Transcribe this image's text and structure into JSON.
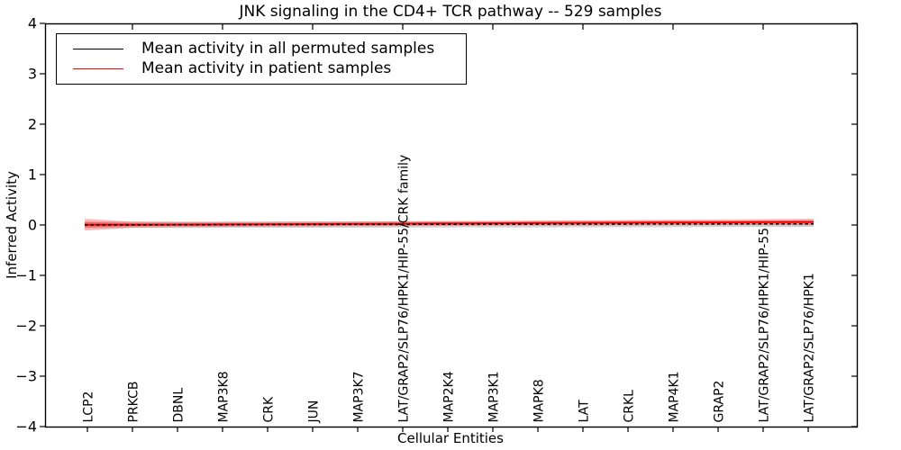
{
  "chart_data": {
    "type": "line",
    "title": "JNK signaling in the CD4+ TCR pathway -- 529 samples",
    "xlabel": "Cellular Entities",
    "ylabel": "Inferred Activity",
    "ylim": [
      -4,
      4
    ],
    "yticks": [
      4,
      3,
      2,
      1,
      0,
      -1,
      -2,
      -3,
      -4
    ],
    "ytick_labels": [
      "4",
      "3",
      "2",
      "1",
      "0",
      "−1",
      "−2",
      "−3",
      "−4"
    ],
    "grid": false,
    "legend_position": "upper left",
    "categories": [
      "LCP2",
      "PRKCB",
      "DBNL",
      "MAP3K8",
      "CRK",
      "JUN",
      "MAP3K7",
      "LAT/GRAP2/SLP76/HPK1/HIP-55/CRK family",
      "MAP2K4",
      "MAP3K1",
      "MAPK8",
      "LAT",
      "CRKL",
      "MAP4K1",
      "GRAP2",
      "LAT/GRAP2/SLP76/HPK1/HIP-55",
      "LAT/GRAP2/SLP76/HPK1"
    ],
    "series": [
      {
        "name": "Mean activity in all permuted samples",
        "color": "#000000",
        "linestyle": "dashed",
        "values": [
          0.002,
          0.003,
          0.004,
          0.006,
          0.008,
          0.009,
          0.011,
          0.012,
          0.014,
          0.015,
          0.016,
          0.018,
          0.019,
          0.02,
          0.021,
          0.022,
          0.023
        ],
        "band_halfwidth": [
          0.062,
          0.062,
          0.062,
          0.062,
          0.062,
          0.062,
          0.062,
          0.062,
          0.062,
          0.062,
          0.062,
          0.062,
          0.062,
          0.062,
          0.062,
          0.062,
          0.062
        ],
        "band_color": "rgba(110,110,110,0.30)"
      },
      {
        "name": "Mean activity in patient samples",
        "color": "#ff0000",
        "linestyle": "solid",
        "values": [
          0.005,
          0.006,
          0.008,
          0.011,
          0.014,
          0.018,
          0.022,
          0.026,
          0.03,
          0.034,
          0.038,
          0.042,
          0.046,
          0.05,
          0.053,
          0.057,
          0.06
        ],
        "band_halfwidth": [
          0.115,
          0.06,
          0.05,
          0.048,
          0.046,
          0.046,
          0.046,
          0.046,
          0.046,
          0.046,
          0.048,
          0.05,
          0.052,
          0.054,
          0.056,
          0.06,
          0.065
        ],
        "band_color": "rgba(255,0,0,0.28)",
        "band_core_color": "rgba(255,30,30,0.38)"
      }
    ]
  }
}
